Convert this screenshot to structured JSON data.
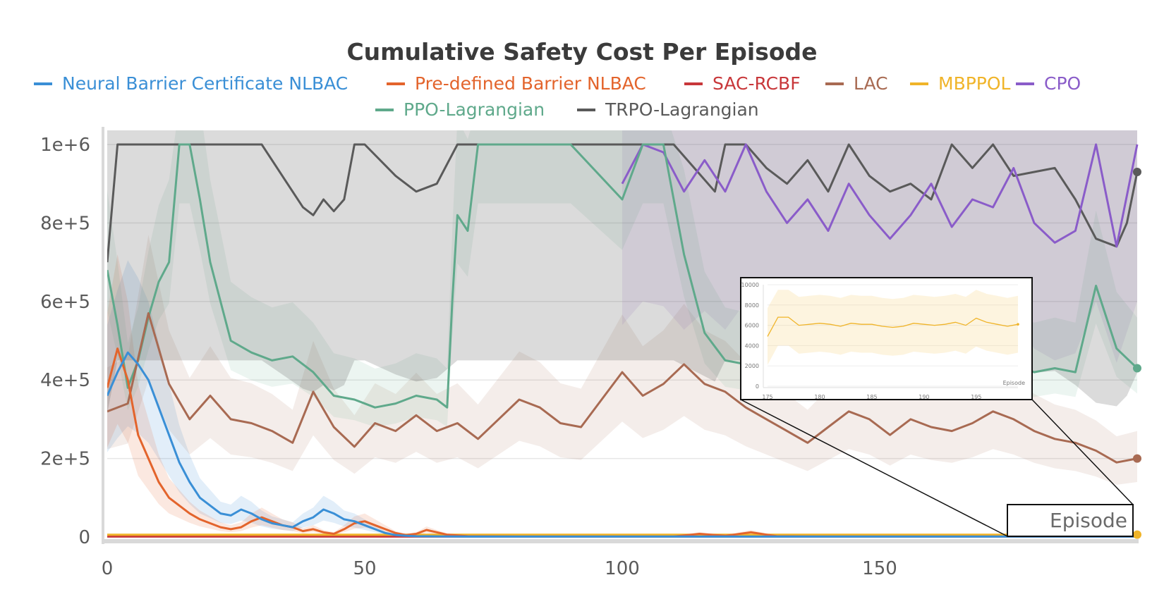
{
  "chart_data": {
    "type": "line",
    "title": "Cumulative Safety Cost Per Episode",
    "xlabel": "Episode",
    "ylabel": "",
    "xlim": [
      0,
      200
    ],
    "ylim": [
      0,
      1000000
    ],
    "legend_position": "top",
    "grid": true,
    "x_ticks": [
      0,
      50,
      100,
      150
    ],
    "x_tick_labels": [
      "0",
      "50",
      "100",
      "150"
    ],
    "y_ticks": [
      0,
      200000,
      400000,
      600000,
      800000,
      1000000
    ],
    "y_tick_labels": [
      "0",
      "2e+5",
      "4e+5",
      "6e+5",
      "8e+5",
      "1e+6"
    ],
    "series": [
      {
        "name": "Neural Barrier Certificate NLBAC",
        "color": "#3a8fd6",
        "x": [
          0,
          2,
          4,
          6,
          8,
          10,
          12,
          14,
          16,
          18,
          20,
          22,
          24,
          26,
          28,
          30,
          32,
          34,
          36,
          38,
          40,
          42,
          44,
          46,
          48,
          50,
          52,
          54,
          56,
          58,
          60,
          70,
          80,
          90,
          100,
          110,
          120,
          130,
          140,
          150,
          160,
          170,
          180,
          190,
          200
        ],
        "y": [
          360000,
          420000,
          470000,
          440000,
          400000,
          330000,
          260000,
          190000,
          140000,
          100000,
          80000,
          60000,
          55000,
          70000,
          60000,
          45000,
          35000,
          30000,
          25000,
          40000,
          50000,
          70000,
          60000,
          45000,
          40000,
          30000,
          20000,
          10000,
          5000,
          3000,
          2000,
          1000,
          1000,
          1000,
          1000,
          1000,
          1000,
          1000,
          1000,
          1000,
          1000,
          1000,
          1000,
          1000,
          1000
        ]
      },
      {
        "name": "Pre-defined Barrier NLBAC",
        "color": "#e3642c",
        "x": [
          0,
          2,
          4,
          6,
          8,
          10,
          12,
          14,
          16,
          18,
          20,
          22,
          24,
          26,
          28,
          30,
          32,
          34,
          36,
          38,
          40,
          42,
          44,
          46,
          48,
          50,
          52,
          54,
          56,
          58,
          60,
          62,
          64,
          66,
          70,
          80,
          90,
          100,
          110,
          115,
          120,
          125,
          130,
          140,
          150,
          160,
          170,
          180,
          190,
          200
        ],
        "y": [
          380000,
          480000,
          400000,
          260000,
          200000,
          140000,
          100000,
          80000,
          60000,
          45000,
          35000,
          25000,
          20000,
          25000,
          40000,
          50000,
          40000,
          30000,
          25000,
          15000,
          20000,
          12000,
          8000,
          20000,
          35000,
          40000,
          30000,
          20000,
          10000,
          5000,
          8000,
          18000,
          12000,
          6000,
          2000,
          1000,
          1000,
          1000,
          1000,
          8000,
          3000,
          12000,
          2000,
          1000,
          1000,
          1000,
          1000,
          1000,
          1000,
          1000
        ]
      },
      {
        "name": "SAC-RCBF",
        "color": "#c8373a",
        "x": [
          0,
          50,
          100,
          150,
          200
        ],
        "y": [
          1000,
          1000,
          1000,
          1000,
          1000
        ]
      },
      {
        "name": "LAC",
        "color": "#a86a52",
        "x": [
          0,
          4,
          8,
          12,
          16,
          20,
          24,
          28,
          32,
          36,
          40,
          44,
          48,
          52,
          56,
          60,
          64,
          68,
          72,
          76,
          80,
          84,
          88,
          92,
          96,
          100,
          104,
          108,
          112,
          116,
          120,
          124,
          128,
          132,
          136,
          140,
          144,
          148,
          152,
          156,
          160,
          164,
          168,
          172,
          176,
          180,
          184,
          188,
          192,
          196,
          200
        ],
        "y": [
          320000,
          340000,
          570000,
          390000,
          300000,
          360000,
          300000,
          290000,
          270000,
          240000,
          370000,
          280000,
          230000,
          290000,
          270000,
          310000,
          270000,
          290000,
          250000,
          300000,
          350000,
          330000,
          290000,
          280000,
          350000,
          420000,
          360000,
          390000,
          440000,
          390000,
          370000,
          330000,
          300000,
          270000,
          240000,
          280000,
          320000,
          300000,
          260000,
          300000,
          280000,
          270000,
          290000,
          320000,
          300000,
          270000,
          250000,
          240000,
          220000,
          190000,
          200000
        ]
      },
      {
        "name": "MBPPOL",
        "color": "#f0b429",
        "x": [
          0,
          25,
          50,
          75,
          100,
          125,
          150,
          175,
          200
        ],
        "y": [
          6000,
          6000,
          6000,
          6000,
          6000,
          6000,
          6000,
          6000,
          6000
        ]
      },
      {
        "name": "CPO",
        "color": "#8a5cc9",
        "x": [
          100,
          104,
          108,
          112,
          116,
          120,
          124,
          128,
          132,
          136,
          140,
          144,
          148,
          152,
          156,
          160,
          164,
          168,
          172,
          176,
          180,
          184,
          188,
          192,
          196,
          200
        ],
        "y": [
          900000,
          1000000,
          980000,
          880000,
          960000,
          880000,
          1000000,
          880000,
          800000,
          860000,
          780000,
          900000,
          820000,
          760000,
          820000,
          900000,
          790000,
          860000,
          840000,
          940000,
          800000,
          750000,
          780000,
          1000000,
          740000,
          1000000
        ]
      },
      {
        "name": "PPO-Lagrangian",
        "color": "#5fa98b",
        "x": [
          0,
          2,
          4,
          6,
          8,
          10,
          12,
          14,
          16,
          18,
          20,
          24,
          28,
          32,
          36,
          40,
          44,
          48,
          52,
          56,
          60,
          64,
          66,
          67,
          68,
          70,
          72,
          76,
          80,
          90,
          100,
          104,
          108,
          112,
          116,
          120,
          124,
          128,
          132,
          136,
          140,
          144,
          148,
          152,
          156,
          160,
          164,
          168,
          172,
          176,
          180,
          184,
          188,
          192,
          196,
          200
        ],
        "y": [
          680000,
          540000,
          380000,
          450000,
          560000,
          650000,
          700000,
          1000000,
          1000000,
          860000,
          700000,
          500000,
          470000,
          450000,
          460000,
          420000,
          360000,
          350000,
          330000,
          340000,
          360000,
          350000,
          330000,
          600000,
          820000,
          780000,
          1000000,
          1000000,
          1000000,
          1000000,
          860000,
          1000000,
          1000000,
          720000,
          520000,
          450000,
          440000,
          430000,
          430000,
          430000,
          440000,
          430000,
          420000,
          430000,
          450000,
          430000,
          440000,
          420000,
          430000,
          440000,
          420000,
          430000,
          420000,
          640000,
          480000,
          430000
        ]
      },
      {
        "name": "TRPO-Lagrangian",
        "color": "#5a5a5a",
        "x": [
          0,
          2,
          4,
          8,
          12,
          16,
          20,
          30,
          34,
          38,
          40,
          42,
          44,
          46,
          48,
          50,
          56,
          60,
          64,
          68,
          70,
          80,
          90,
          100,
          110,
          118,
          120,
          124,
          128,
          132,
          136,
          140,
          144,
          148,
          152,
          156,
          160,
          164,
          168,
          172,
          176,
          180,
          184,
          188,
          192,
          196,
          198,
          200
        ],
        "y": [
          700000,
          1000000,
          1000000,
          1000000,
          1000000,
          1000000,
          1000000,
          1000000,
          920000,
          840000,
          820000,
          860000,
          830000,
          860000,
          1000000,
          1000000,
          920000,
          880000,
          900000,
          1000000,
          1000000,
          1000000,
          1000000,
          1000000,
          1000000,
          880000,
          1000000,
          1000000,
          940000,
          900000,
          960000,
          880000,
          1000000,
          920000,
          880000,
          900000,
          860000,
          1000000,
          940000,
          1000000,
          920000,
          930000,
          940000,
          860000,
          760000,
          740000,
          800000,
          930000
        ]
      }
    ],
    "inset": {
      "xlim": [
        175,
        199
      ],
      "ylim": [
        0,
        10000
      ],
      "x_ticks": [
        175,
        180,
        185,
        190,
        195
      ],
      "x_tick_labels": [
        "175",
        "180",
        "185",
        "190",
        "195"
      ],
      "y_ticks": [
        0,
        2000,
        4000,
        6000,
        8000,
        10000
      ],
      "y_tick_labels": [
        "0",
        "2000",
        "4000",
        "6000",
        "8000",
        "10000"
      ],
      "xlabel": "Episode",
      "series_name": "MBPPOL",
      "x": [
        175,
        176,
        177,
        178,
        179,
        180,
        181,
        182,
        183,
        184,
        185,
        186,
        187,
        188,
        189,
        190,
        191,
        192,
        193,
        194,
        195,
        196,
        197,
        198,
        199
      ],
      "y": [
        4900,
        6800,
        6800,
        6000,
        6100,
        6200,
        6100,
        5900,
        6200,
        6100,
        6100,
        5900,
        5800,
        5900,
        6200,
        6100,
        6000,
        6100,
        6300,
        6000,
        6700,
        6300,
        6100,
        5900,
        6100
      ]
    }
  }
}
